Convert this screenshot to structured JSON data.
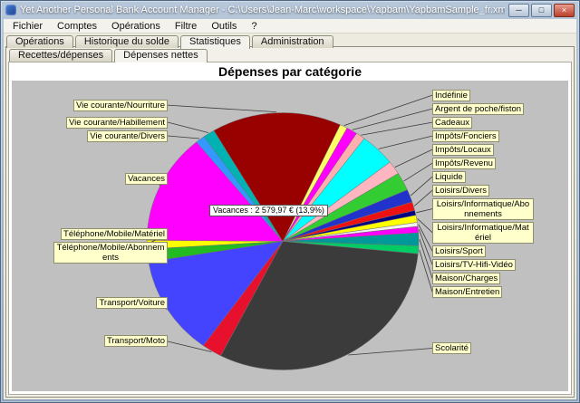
{
  "window": {
    "title": "Yet Another Personal Bank Account Manager - C:\\Users\\Jean-Marc\\workspace\\Yapbam\\YapbamSample_fr.xml",
    "minimize_label": "─",
    "maximize_label": "□",
    "close_label": "×"
  },
  "menu": {
    "items": [
      "Fichier",
      "Comptes",
      "Opérations",
      "Filtre",
      "Outils",
      "?"
    ]
  },
  "tabs": {
    "items": [
      "Opérations",
      "Historique du solde",
      "Statistiques",
      "Administration"
    ],
    "selected": "Statistiques"
  },
  "subtabs": {
    "items": [
      "Recettes/dépenses",
      "Dépenses nettes"
    ],
    "selected": "Dépenses nettes"
  },
  "chart": {
    "title": "Dépenses par catégorie",
    "tooltip": "Vacances : 2 579,97 € (13,9%)",
    "plot_bg": "#C0C0C0",
    "label_bg": "#FFFFCC"
  },
  "chart_data": {
    "type": "pie",
    "title": "Dépenses par catégorie",
    "unit": "percent",
    "start_angle": 25,
    "direction": "clockwise",
    "legend": "callout-labels",
    "slices": [
      {
        "label": "Indéfinie",
        "value": 0.9,
        "color": "#FFFF66"
      },
      {
        "label": "Argent de poche/fiston",
        "value": 1.3,
        "color": "#FF00FF"
      },
      {
        "label": "Cadeaux",
        "value": 1.1,
        "color": "#FFAFAF"
      },
      {
        "label": "Impôts/Fonciers",
        "value": 4.2,
        "color": "#00FFFF"
      },
      {
        "label": "Impôts/Locaux",
        "value": 1.7,
        "color": "#FFB6C1"
      },
      {
        "label": "Impôts/Revenu",
        "value": 2.3,
        "color": "#33CC33"
      },
      {
        "label": "Liquide",
        "value": 1.6,
        "color": "#2233CC"
      },
      {
        "label": "Loisirs/Divers",
        "value": 1.1,
        "color": "#EE1111"
      },
      {
        "label": "Loisirs/Informatique/Abonnements",
        "value": 0.6,
        "color": "#000080"
      },
      {
        "label": "Loisirs/Informatique/Matériel",
        "value": 0.9,
        "color": "#FFFF00"
      },
      {
        "label": "Loisirs/Sport",
        "value": 0.5,
        "color": "#F2F2F2"
      },
      {
        "label": "Loisirs/TV-Hifi-Vidéo",
        "value": 0.8,
        "color": "#FF00FF"
      },
      {
        "label": "Maison/Charges",
        "value": 1.6,
        "color": "#009999"
      },
      {
        "label": "Maison/Entretien",
        "value": 1.0,
        "color": "#00CC66"
      },
      {
        "label": "Scolarité",
        "value": 31.0,
        "color": "#3B3B3B"
      },
      {
        "label": "Transport/Moto",
        "value": 2.4,
        "color": "#E8112D"
      },
      {
        "label": "Transport/Voiture",
        "value": 12.5,
        "color": "#4444FF"
      },
      {
        "label": "Téléphone/Mobile/Abonnements",
        "value": 1.6,
        "color": "#22BB22"
      },
      {
        "label": "Téléphone/Mobile/Matériel",
        "value": 1.1,
        "color": "#FFFF00"
      },
      {
        "label": "Vacances",
        "value": 13.9,
        "color": "#FF00FF",
        "amount": "2 579,97 €"
      },
      {
        "label": "Vie courante/Divers",
        "value": 1.1,
        "color": "#3399FF"
      },
      {
        "label": "Vie courante/Habillement",
        "value": 1.4,
        "color": "#00B2B2"
      },
      {
        "label": "Vie courante/Nourriture",
        "value": 15.4,
        "color": "#990000"
      }
    ]
  }
}
